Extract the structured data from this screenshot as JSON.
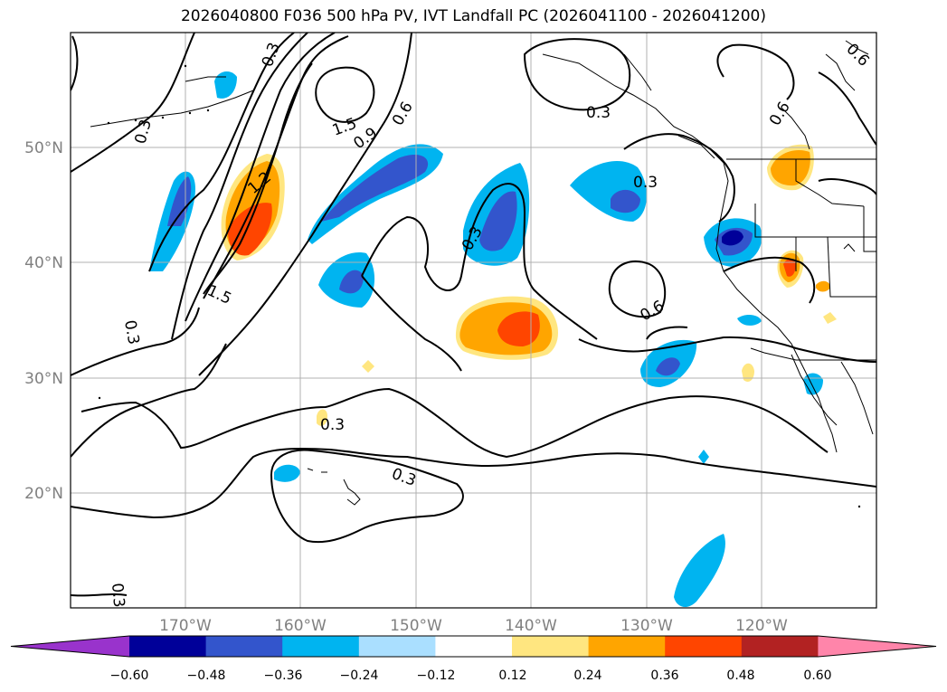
{
  "title": "2026040800 F036 500 hPa PV, IVT Landfall PC (2026041100 - 2026041200)",
  "map": {
    "lat_labels": [
      "50°N",
      "40°N",
      "30°N",
      "20°N"
    ],
    "lon_labels": [
      "170°W",
      "160°W",
      "150°W",
      "140°W",
      "130°W",
      "120°W"
    ],
    "contour_labels": [
      "0.3",
      "0.3",
      "0.3",
      "0.3",
      "0.3",
      "0.3",
      "0.3",
      "0.3",
      "0.3",
      "0.6",
      "0.6",
      "0.6",
      "0.6",
      "0.9",
      "1.2",
      "1.5",
      "1.5"
    ]
  },
  "colorbar": {
    "ticks": [
      "−0.60",
      "−0.48",
      "−0.36",
      "−0.24",
      "−0.12",
      "0.12",
      "0.24",
      "0.36",
      "0.48",
      "0.60"
    ],
    "colors": [
      "#9933cc",
      "#000099",
      "#3355cc",
      "#00b4f0",
      "#aadfff",
      "#ffffff",
      "#ffe680",
      "#ffa500",
      "#ff4500",
      "#b22222",
      "#ff85aa"
    ]
  }
}
